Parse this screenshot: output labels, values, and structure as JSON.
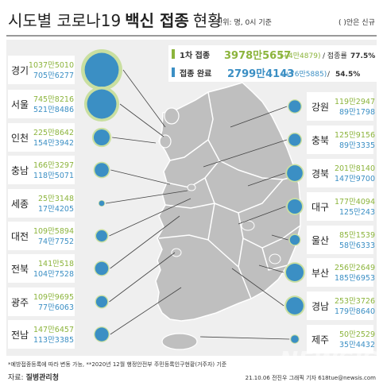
{
  "header": {
    "title_part1": "시도별 코로나19",
    "title_part2": "백신 접종",
    "title_part3": "현황",
    "unit": "단위: 명, 0시 기준",
    "legend_note": "( )안은 신규"
  },
  "summary": {
    "first_label": "1차 접종",
    "first_value": "3978만5657",
    "first_new": "(+4만4879)",
    "first_rate_label": "/ 접종률",
    "first_rate": "77.5%",
    "full_label": "접종 완료",
    "full_value": "2799만4143",
    "full_new": "(+76만5885)",
    "full_rate_sep": "/",
    "full_rate": "54.5%"
  },
  "colors": {
    "first_dose": "#c9dfa0",
    "first_dose_text": "#8cb43c",
    "full_dose": "#3b8fc4",
    "map_fill": "#bfbfbf",
    "panel": "#efefef",
    "leader": "#444444"
  },
  "chart_data": {
    "type": "bubble",
    "series": [
      {
        "name": "1차 접종"
      },
      {
        "name": "접종 완료"
      }
    ],
    "regions": [
      {
        "name": "경기",
        "first": "1037만5010",
        "full": "705만6277",
        "first_n": 10375010,
        "full_n": 7056277
      },
      {
        "name": "서울",
        "first": "745만8216",
        "full": "521만8486",
        "first_n": 7458216,
        "full_n": 5218486
      },
      {
        "name": "인천",
        "first": "225만8642",
        "full": "154만3942",
        "first_n": 2258642,
        "full_n": 1543942
      },
      {
        "name": "충남",
        "first": "166만3297",
        "full": "118만5071",
        "first_n": 1663297,
        "full_n": 1185071
      },
      {
        "name": "세종",
        "first": "25만3148",
        "full": "17만4205",
        "first_n": 253148,
        "full_n": 174205
      },
      {
        "name": "대전",
        "first": "109만5894",
        "full": "74만7752",
        "first_n": 1095894,
        "full_n": 747752
      },
      {
        "name": "전북",
        "first": "141만518",
        "full": "104만7528",
        "first_n": 1410518,
        "full_n": 1047528
      },
      {
        "name": "광주",
        "first": "109만9695",
        "full": "77만6063",
        "first_n": 1099695,
        "full_n": 776063
      },
      {
        "name": "전남",
        "first": "147만6457",
        "full": "113만3385",
        "first_n": 1476457,
        "full_n": 1133385
      },
      {
        "name": "강원",
        "first": "119만2947",
        "full": "89만1798",
        "first_n": 1192947,
        "full_n": 891798
      },
      {
        "name": "충북",
        "first": "125만9156",
        "full": "89만3335",
        "first_n": 1259156,
        "full_n": 893335
      },
      {
        "name": "경북",
        "first": "201만8140",
        "full": "147만9700",
        "first_n": 2018140,
        "full_n": 1479700
      },
      {
        "name": "대구",
        "first": "177만4094",
        "full": "125만243",
        "first_n": 1774094,
        "full_n": 1250243
      },
      {
        "name": "울산",
        "first": "85만1539",
        "full": "58만6333",
        "first_n": 851539,
        "full_n": 586333
      },
      {
        "name": "부산",
        "first": "256만2649",
        "full": "185만6953",
        "first_n": 2562649,
        "full_n": 1856953
      },
      {
        "name": "경남",
        "first": "253만3726",
        "full": "179만8640",
        "first_n": 2533726,
        "full_n": 1798640
      },
      {
        "name": "제주",
        "first": "50만2529",
        "full": "35만4432",
        "first_n": 502529,
        "full_n": 354432
      }
    ]
  },
  "footer": {
    "note": "*예방접종등록에 따라 변동 가능, **2020년 12월 행정안전부 주민등록인구현황(거주자) 기준",
    "source_label": "자료:",
    "source": "질병관리청",
    "credit": "21.10.06 전진우 그래픽 기자 618tue@newsis.com",
    "watermark": "NEWSIS"
  }
}
